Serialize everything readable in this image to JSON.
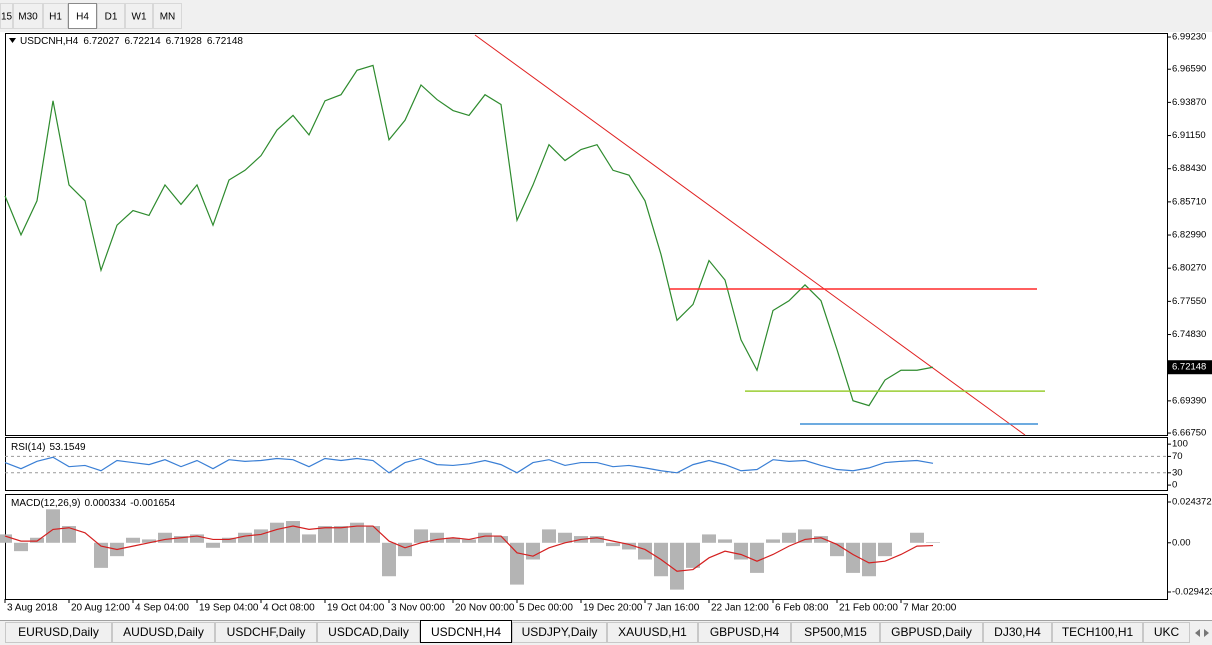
{
  "toolbar": {
    "timeframes": [
      "15",
      "M30",
      "H1",
      "H4",
      "D1",
      "W1",
      "MN"
    ],
    "active": 3
  },
  "chart_data": [
    {
      "type": "line",
      "symbol": "USDCNH,H4",
      "ohlc": [
        6.72027,
        6.72214,
        6.71928,
        6.72148
      ],
      "categories": [
        "3 Aug 2018",
        null,
        null,
        null,
        "20 Aug 12:00",
        null,
        null,
        null,
        "4 Sep 04:00",
        null,
        null,
        null,
        "19 Sep 04:00",
        null,
        null,
        null,
        "4 Oct 08:00",
        null,
        null,
        null,
        "19 Oct 04:00",
        null,
        null,
        null,
        "3 Nov 00:00",
        null,
        null,
        null,
        "20 Nov 00:00",
        null,
        null,
        null,
        "5 Dec 00:00",
        null,
        null,
        null,
        "19 Dec 20:00",
        null,
        null,
        null,
        "7 Jan 16:00",
        null,
        null,
        null,
        "22 Jan 12:00",
        null,
        null,
        null,
        "6 Feb 08:00",
        null,
        null,
        null,
        "21 Feb 00:00",
        null,
        null,
        null,
        "7 Mar 20:00",
        null,
        null
      ],
      "values": [
        6.862,
        6.83,
        6.858,
        6.94,
        6.871,
        6.858,
        6.801,
        6.838,
        6.85,
        6.846,
        6.871,
        6.855,
        6.871,
        6.838,
        6.875,
        6.883,
        6.895,
        6.916,
        6.928,
        6.912,
        6.94,
        6.945,
        6.965,
        6.969,
        6.908,
        6.924,
        6.953,
        6.941,
        6.932,
        6.928,
        6.945,
        6.937,
        6.842,
        6.871,
        6.904,
        6.891,
        6.9,
        6.904,
        6.883,
        6.879,
        6.858,
        6.814,
        6.76,
        6.773,
        6.809,
        6.793,
        6.744,
        6.719,
        6.768,
        6.776,
        6.789,
        6.776,
        6.736,
        6.694,
        6.69,
        6.711,
        6.719,
        6.719,
        6.72148
      ],
      "color": "#2e8b2e",
      "ylim": [
        6.6659,
        6.9956
      ],
      "yticks": [
        {
          "value": 6.9923,
          "label": "6.99230"
        },
        {
          "value": 6.9659,
          "label": "6.96590"
        },
        {
          "value": 6.9387,
          "label": "6.93870"
        },
        {
          "value": 6.9115,
          "label": "6.91150"
        },
        {
          "value": 6.8843,
          "label": "6.88430"
        },
        {
          "value": 6.8571,
          "label": "6.85710"
        },
        {
          "value": 6.8299,
          "label": "6.82990"
        },
        {
          "value": 6.8027,
          "label": "6.80270"
        },
        {
          "value": 6.7755,
          "label": "6.77550"
        },
        {
          "value": 6.7483,
          "label": "6.74830"
        },
        {
          "value": 6.6939,
          "label": "6.69390"
        },
        {
          "value": 6.6675,
          "label": "6.66750"
        }
      ],
      "hlines": [
        {
          "value": 6.7856,
          "color": "#ff2a2a"
        },
        {
          "value": 6.7019,
          "color": "#9acd32"
        },
        {
          "value": 6.6749,
          "color": "#3d8fd6"
        }
      ]
    },
    {
      "type": "line",
      "title": "RSI(14)",
      "values": [
        55,
        40,
        58,
        68,
        45,
        48,
        35,
        60,
        55,
        50,
        62,
        45,
        60,
        40,
        62,
        58,
        60,
        65,
        62,
        45,
        65,
        60,
        65,
        60,
        30,
        55,
        65,
        50,
        48,
        52,
        60,
        50,
        30,
        55,
        62,
        48,
        55,
        55,
        45,
        48,
        42,
        35,
        30,
        50,
        60,
        50,
        35,
        38,
        62,
        58,
        60,
        48,
        38,
        35,
        42,
        55,
        58,
        60,
        53.1549
      ],
      "color": "#3a7fd5",
      "ylim": [
        -12,
        115
      ],
      "yticks": [
        100,
        70,
        30,
        0
      ],
      "levels": [
        70,
        30
      ]
    },
    {
      "type": "macd",
      "title": "MACD(12,26,9)",
      "series": [
        {
          "kind": "bar",
          "color": "#b4b4b4",
          "values": [
            0.005,
            -0.005,
            0.003,
            0.02,
            0.01,
            0.0,
            -0.015,
            -0.008,
            0.003,
            0.002,
            0.006,
            0.004,
            0.005,
            -0.003,
            0.003,
            0.006,
            0.008,
            0.012,
            0.013,
            0.005,
            0.01,
            0.01,
            0.012,
            0.01,
            -0.02,
            -0.008,
            0.008,
            0.006,
            0.003,
            0.002,
            0.006,
            0.004,
            -0.025,
            -0.01,
            0.008,
            0.006,
            0.004,
            0.004,
            -0.002,
            -0.004,
            -0.01,
            -0.02,
            -0.028,
            -0.015,
            0.005,
            0.002,
            -0.01,
            -0.018,
            0.002,
            0.006,
            0.008,
            0.004,
            -0.008,
            -0.018,
            -0.02,
            -0.008,
            0.0,
            0.006,
            0.000334
          ]
        },
        {
          "kind": "line",
          "color": "#d42020",
          "values": [
            0.004,
            0.001,
            0.001,
            0.008,
            0.009,
            0.006,
            -0.002,
            -0.004,
            -0.002,
            0.0,
            0.002,
            0.003,
            0.004,
            0.002,
            0.002,
            0.004,
            0.005,
            0.008,
            0.01,
            0.008,
            0.009,
            0.009,
            0.01,
            0.01,
            0.001,
            -0.003,
            0.0,
            0.002,
            0.003,
            0.002,
            0.004,
            0.004,
            -0.006,
            -0.008,
            -0.003,
            0.0,
            0.002,
            0.003,
            0.001,
            -0.001,
            -0.004,
            -0.01,
            -0.017,
            -0.016,
            -0.009,
            -0.005,
            -0.007,
            -0.011,
            -0.007,
            -0.002,
            0.002,
            0.003,
            -0.001,
            -0.007,
            -0.012,
            -0.011,
            -0.007,
            -0.002,
            -0.001654
          ]
        }
      ],
      "ylim": [
        -0.03301,
        0.02856
      ],
      "yticks": [
        0.024372,
        {
          "value": 0,
          "label": "0.00"
        },
        -0.029423
      ]
    }
  ],
  "tabs": {
    "items": [
      "EURUSD,Daily",
      "AUDUSD,Daily",
      "USDCHF,Daily",
      "USDCAD,Daily",
      "USDCNH,H4",
      "USDJPY,Daily",
      "XAUUSD,H1",
      "GBPUSD,H4",
      "SP500,M15",
      "GBPUSD,Daily",
      "DJ30,H4",
      "TECH100,H1",
      "UKC"
    ],
    "active": 4
  }
}
